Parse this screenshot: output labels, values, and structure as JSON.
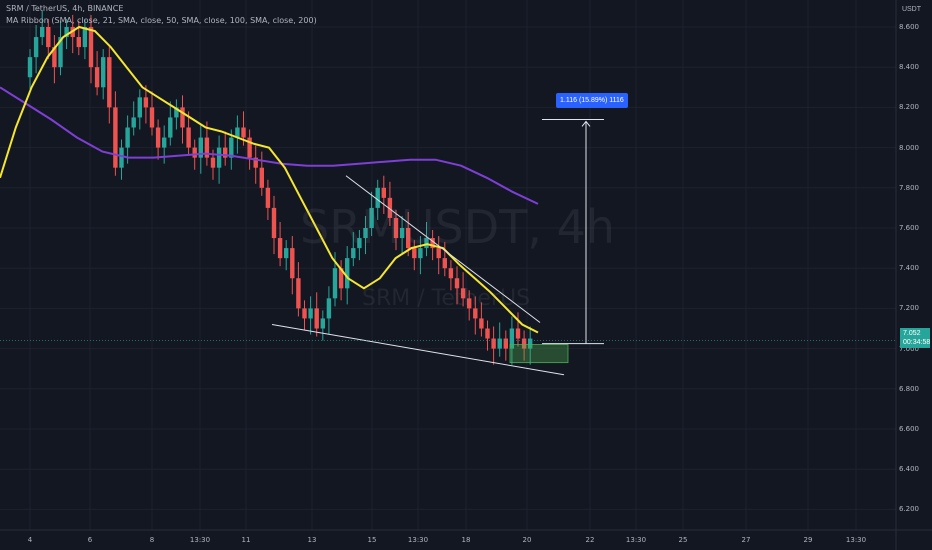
{
  "header": {
    "title": "SRM / TetherUS, 4h, BINANCE",
    "indicator": "MA Ribbon (SMA, close, 21, SMA, close, 50, SMA, close, 100, SMA, close, 200)"
  },
  "watermark": {
    "symbol": "SRMUSDT, 4h",
    "name": "SRM / TetherUS"
  },
  "axis_unit": "USDT",
  "price_tag": {
    "price": "7.052",
    "countdown": "00:34:58"
  },
  "measure_label": "1.116 (15.89%) 1116",
  "colors": {
    "background": "#131722",
    "up": "#26a69a",
    "down": "#ef5350",
    "ma21": "#f5e62e",
    "ma200": "#7e3fd6",
    "measure": "#2962ff"
  },
  "chart_data": {
    "type": "candlestick",
    "y_ticks": [
      "8.600",
      "8.400",
      "8.200",
      "8.000",
      "7.800",
      "7.600",
      "7.400",
      "7.200",
      "7.000",
      "6.800",
      "6.600",
      "6.400",
      "6.200"
    ],
    "ylim": [
      6.1,
      8.7
    ],
    "x_ticks": [
      "4",
      "6",
      "8",
      "13:30",
      "11",
      "13",
      "15",
      "13:30",
      "18",
      "20",
      "22",
      "13:30",
      "25",
      "27",
      "29",
      "13:30"
    ],
    "close_series": [
      8.45,
      8.55,
      8.6,
      8.5,
      8.4,
      8.55,
      8.6,
      8.55,
      8.5,
      8.6,
      8.4,
      8.3,
      8.45,
      8.2,
      7.9,
      8.0,
      8.1,
      8.15,
      8.25,
      8.2,
      8.1,
      8.0,
      8.05,
      8.15,
      8.2,
      8.1,
      8.0,
      7.95,
      8.05,
      7.95,
      7.9,
      8.0,
      7.95,
      8.05,
      8.1,
      8.05,
      7.95,
      7.9,
      7.8,
      7.7,
      7.55,
      7.45,
      7.5,
      7.35,
      7.2,
      7.15,
      7.2,
      7.1,
      7.15,
      7.25,
      7.4,
      7.3,
      7.45,
      7.5,
      7.55,
      7.6,
      7.7,
      7.8,
      7.75,
      7.65,
      7.55,
      7.6,
      7.5,
      7.45,
      7.5,
      7.55,
      7.5,
      7.45,
      7.4,
      7.35,
      7.3,
      7.25,
      7.2,
      7.15,
      7.1,
      7.05,
      7.0,
      7.05,
      7.0,
      7.1,
      7.05,
      7.0,
      7.05
    ],
    "series": [
      {
        "name": "MA 21",
        "values": [
          7.85,
          8.1,
          8.3,
          8.45,
          8.55,
          8.6,
          8.58,
          8.5,
          8.4,
          8.3,
          8.25,
          8.2,
          8.15,
          8.1,
          8.08,
          8.05,
          8.02,
          8.0,
          7.9,
          7.75,
          7.6,
          7.45,
          7.35,
          7.3,
          7.35,
          7.45,
          7.5,
          7.52,
          7.5,
          7.42,
          7.35,
          7.28,
          7.2,
          7.12,
          7.08
        ]
      },
      {
        "name": "MA 200",
        "values": [
          8.3,
          8.22,
          8.14,
          8.05,
          7.98,
          7.95,
          7.95,
          7.96,
          7.97,
          7.96,
          7.94,
          7.92,
          7.91,
          7.91,
          7.92,
          7.93,
          7.94,
          7.94,
          7.91,
          7.85,
          7.78,
          7.72
        ]
      }
    ],
    "annotations": {
      "upper_trendline": [
        7.86,
        7.13
      ],
      "lower_trendline": [
        7.12,
        6.87
      ],
      "target_level": 8.14,
      "current_level": 7.025
    }
  }
}
